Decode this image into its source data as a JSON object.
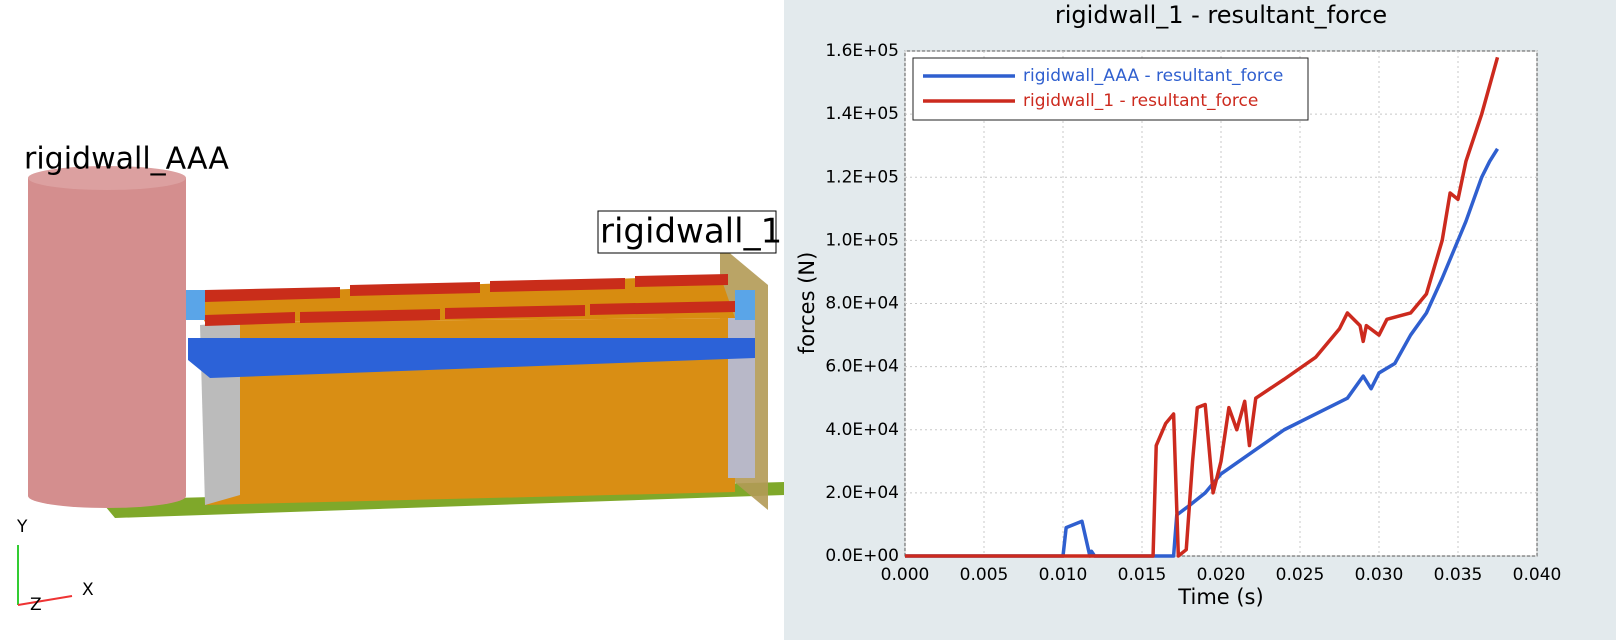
{
  "viewport": {
    "labels": [
      "rigidwall_AAA",
      "rigidwall_1"
    ],
    "axes": [
      "Y",
      "X",
      "Z"
    ]
  },
  "chart_data": {
    "type": "line",
    "title": "rigidwall_1 - resultant_force",
    "x_label": "Time (s)",
    "y_label": "forces (N)",
    "grid": true,
    "legend": "top-left",
    "xlim": [
      0,
      0.04
    ],
    "xticks": [
      {
        "value": 0,
        "label": "0.000"
      },
      {
        "value": 0.005,
        "label": "0.005"
      },
      {
        "value": 0.01,
        "label": "0.010"
      },
      {
        "value": 0.015,
        "label": "0.015"
      },
      {
        "value": 0.02,
        "label": "0.020"
      },
      {
        "value": 0.025,
        "label": "0.025"
      },
      {
        "value": 0.03,
        "label": "0.030"
      },
      {
        "value": 0.035,
        "label": "0.035"
      },
      {
        "value": 0.04,
        "label": "0.040"
      }
    ],
    "ylim": [
      0,
      160000
    ],
    "yticks": [
      {
        "value": 0,
        "label": "0.0E+00"
      },
      {
        "value": 20000,
        "label": "2.0E+04"
      },
      {
        "value": 40000,
        "label": "4.0E+04"
      },
      {
        "value": 60000,
        "label": "6.0E+04"
      },
      {
        "value": 80000,
        "label": "8.0E+04"
      },
      {
        "value": 100000,
        "label": "1.0E+05"
      },
      {
        "value": 120000,
        "label": "1.2E+05"
      },
      {
        "value": 140000,
        "label": "1.4E+05"
      },
      {
        "value": 160000,
        "label": "1.6E+05"
      }
    ],
    "series": [
      {
        "name": "rigidwall_AAA - resultant_force",
        "color": "#2f5fcf",
        "x": [
          0,
          0.01,
          0.0102,
          0.0112,
          0.0117,
          0.0118,
          0.012,
          0.017,
          0.0172,
          0.018,
          0.019,
          0.02,
          0.022,
          0.024,
          0.026,
          0.028,
          0.029,
          0.0295,
          0.03,
          0.031,
          0.032,
          0.033,
          0.034,
          0.035,
          0.0355,
          0.036,
          0.0365,
          0.037,
          0.0375
        ],
        "values": [
          0,
          0,
          9000,
          11000,
          0,
          1500,
          0,
          0,
          13000,
          16000,
          20000,
          26000,
          33000,
          40000,
          45000,
          50000,
          57000,
          53000,
          58000,
          61000,
          70000,
          77000,
          88000,
          100000,
          106000,
          113000,
          120000,
          125000,
          129000
        ]
      },
      {
        "name": "rigidwall_1 - resultant_force",
        "color": "#cc2a1e",
        "x": [
          0,
          0.0157,
          0.0159,
          0.0165,
          0.017,
          0.0173,
          0.0178,
          0.0182,
          0.0185,
          0.019,
          0.0195,
          0.02,
          0.0205,
          0.021,
          0.0215,
          0.0218,
          0.0222,
          0.024,
          0.026,
          0.0275,
          0.028,
          0.0288,
          0.029,
          0.0292,
          0.03,
          0.0305,
          0.032,
          0.033,
          0.034,
          0.0345,
          0.035,
          0.0355,
          0.0365,
          0.0375
        ],
        "values": [
          0,
          0,
          35000,
          42000,
          45000,
          0,
          2000,
          30000,
          47000,
          48000,
          20000,
          30000,
          47000,
          40000,
          49000,
          35000,
          50000,
          56000,
          63000,
          72000,
          77000,
          73000,
          68000,
          73000,
          70000,
          75000,
          77000,
          83000,
          100000,
          115000,
          113000,
          125000,
          140000,
          158000
        ]
      }
    ]
  }
}
